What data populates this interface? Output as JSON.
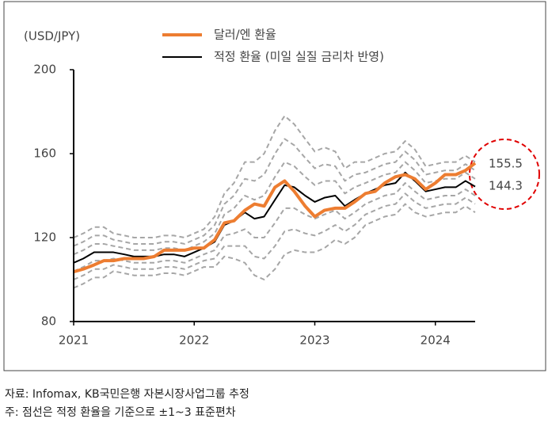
{
  "chart_data": {
    "type": "line",
    "y_label": "(USD/JPY)",
    "x": [
      2021,
      2021.08,
      2021.17,
      2021.25,
      2021.33,
      2021.42,
      2021.5,
      2021.58,
      2021.67,
      2021.75,
      2021.83,
      2021.92,
      2022,
      2022.08,
      2022.17,
      2022.25,
      2022.33,
      2022.42,
      2022.5,
      2022.58,
      2022.67,
      2022.75,
      2022.83,
      2022.92,
      2023,
      2023.08,
      2023.17,
      2023.25,
      2023.33,
      2023.42,
      2023.5,
      2023.58,
      2023.67,
      2023.75,
      2023.83,
      2023.92,
      2024,
      2024.08,
      2024.17,
      2024.25,
      2024.33
    ],
    "xlim": [
      2021,
      2024.33
    ],
    "xticks": [
      2021,
      2022,
      2023,
      2024
    ],
    "ylim": [
      80,
      200
    ],
    "yticks": [
      80,
      120,
      160,
      200
    ],
    "series": [
      {
        "name": "달러/엔 환율",
        "color": "#ed7d31",
        "width": 4,
        "style": "solid",
        "values": [
          103.7,
          105,
          107,
          109,
          109,
          110,
          110,
          110,
          111,
          114,
          114,
          114,
          115,
          115,
          119,
          127,
          128,
          133,
          136,
          135,
          144,
          147,
          142,
          135,
          130,
          133,
          134,
          134,
          137,
          141,
          142,
          146,
          149,
          150,
          148,
          143,
          146,
          150,
          150,
          152,
          155.5
        ]
      },
      {
        "name": "적정 환율 (미일 실질 금리차 반영)",
        "color": "#000000",
        "width": 2,
        "style": "solid",
        "values": [
          108,
          110,
          113,
          113,
          113,
          112,
          111,
          111,
          111,
          112,
          112,
          111,
          113,
          115,
          118,
          126,
          128,
          132,
          129,
          130,
          138,
          145,
          144,
          140,
          137,
          139,
          140,
          135,
          138,
          141,
          143,
          145,
          146,
          151,
          147,
          142,
          143,
          144,
          144,
          147,
          144.3
        ]
      },
      {
        "color": "#a6a6a6",
        "width": 2,
        "style": "dashed",
        "values": [
          120,
          122,
          125,
          125,
          122,
          121,
          120,
          120,
          120,
          121,
          121,
          120,
          122,
          124,
          130,
          141,
          146,
          156,
          156,
          160,
          171,
          178,
          174,
          167,
          161,
          163,
          161,
          153,
          156,
          156,
          158,
          160,
          161,
          166,
          162,
          154,
          155,
          156,
          156,
          159,
          156
        ]
      },
      {
        "color": "#a6a6a6",
        "width": 2,
        "style": "dashed",
        "values": [
          116,
          118,
          121,
          121,
          119,
          118,
          117,
          117,
          117,
          118,
          118,
          117,
          119,
          121,
          126,
          136,
          140,
          148,
          147,
          150,
          160,
          167,
          164,
          158,
          153,
          155,
          154,
          147,
          150,
          151,
          153,
          155,
          156,
          161,
          157,
          150,
          151,
          152,
          152,
          155,
          152
        ]
      },
      {
        "color": "#a6a6a6",
        "width": 2,
        "style": "dashed",
        "values": [
          112,
          114,
          117,
          117,
          116,
          115,
          114,
          114,
          114,
          115,
          115,
          114,
          116,
          118,
          122,
          131,
          134,
          140,
          138,
          140,
          149,
          156,
          154,
          149,
          145,
          147,
          147,
          141,
          144,
          146,
          148,
          150,
          151,
          156,
          152,
          146,
          147,
          148,
          148,
          151,
          148
        ]
      },
      {
        "color": "#a6a6a6",
        "width": 2,
        "style": "dashed",
        "values": [
          104,
          106,
          109,
          109,
          110,
          109,
          108,
          108,
          108,
          109,
          109,
          108,
          110,
          112,
          114,
          121,
          122,
          124,
          120,
          120,
          127,
          134,
          134,
          131,
          129,
          131,
          133,
          129,
          132,
          136,
          138,
          140,
          141,
          146,
          142,
          138,
          139,
          140,
          140,
          143,
          140
        ]
      },
      {
        "color": "#a6a6a6",
        "width": 2,
        "style": "dashed",
        "values": [
          100,
          102,
          105,
          105,
          107,
          106,
          105,
          105,
          105,
          106,
          106,
          105,
          107,
          109,
          110,
          116,
          116,
          116,
          111,
          110,
          116,
          123,
          124,
          122,
          121,
          123,
          126,
          123,
          126,
          131,
          133,
          135,
          136,
          141,
          137,
          134,
          135,
          136,
          136,
          139,
          136
        ]
      },
      {
        "color": "#a6a6a6",
        "width": 2,
        "style": "dashed",
        "values": [
          96,
          98,
          101,
          101,
          104,
          103,
          102,
          102,
          102,
          103,
          103,
          102,
          104,
          106,
          106,
          111,
          110,
          108,
          102,
          100,
          105,
          112,
          114,
          113,
          113,
          115,
          119,
          117,
          120,
          126,
          128,
          130,
          131,
          136,
          132,
          130,
          131,
          132,
          132,
          135,
          132
        ]
      }
    ],
    "notes": [
      "자료: Infomax, KB국민은행 자본시장사업그룹 추정",
      "주: 점선은 적정 환율을 기준으로 ±1~3 표준편차"
    ]
  }
}
